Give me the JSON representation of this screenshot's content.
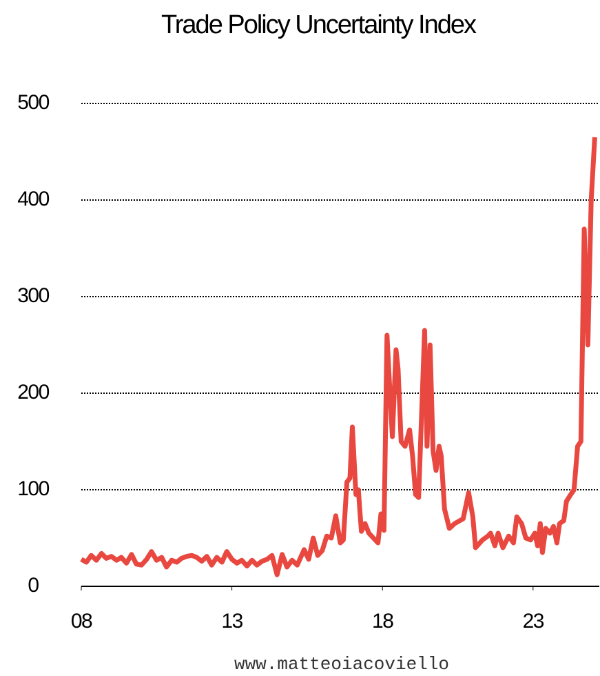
{
  "chart_data": {
    "type": "line",
    "title": "Trade Policy Uncertainty Index",
    "source": "www.matteoiacoviello",
    "color": "#e8483f",
    "x": [
      2008,
      2008.17,
      2008.33,
      2008.5,
      2008.67,
      2008.83,
      2009,
      2009.17,
      2009.33,
      2009.5,
      2009.67,
      2009.83,
      2010,
      2010.17,
      2010.33,
      2010.5,
      2010.67,
      2010.83,
      2011,
      2011.17,
      2011.33,
      2011.5,
      2011.67,
      2011.83,
      2012,
      2012.17,
      2012.33,
      2012.5,
      2012.67,
      2012.83,
      2013,
      2013.17,
      2013.33,
      2013.5,
      2013.67,
      2013.83,
      2014,
      2014.17,
      2014.33,
      2014.5,
      2014.67,
      2014.83,
      2015,
      2015.17,
      2015.4,
      2015.55,
      2015.7,
      2015.85,
      2016,
      2016.15,
      2016.3,
      2016.45,
      2016.6,
      2016.7,
      2016.82,
      2016.92,
      2017,
      2017.12,
      2017.2,
      2017.3,
      2017.42,
      2017.55,
      2017.7,
      2017.85,
      2017.95,
      2018.05,
      2018.15,
      2018.25,
      2018.33,
      2018.45,
      2018.52,
      2018.62,
      2018.75,
      2018.9,
      2019,
      2019.1,
      2019.2,
      2019.4,
      2019.48,
      2019.58,
      2019.68,
      2019.78,
      2019.88,
      2019.95,
      2020.06,
      2020.22,
      2020.4,
      2020.68,
      2020.86,
      2021,
      2021.09,
      2021.32,
      2021.5,
      2021.59,
      2021.73,
      2021.84,
      2022,
      2022.19,
      2022.35,
      2022.46,
      2022.62,
      2022.76,
      2022.92,
      2023.06,
      2023.15,
      2023.24,
      2023.31,
      2023.42,
      2023.56,
      2023.68,
      2023.79,
      2023.88,
      2024.02,
      2024.11,
      2024.25,
      2024.36,
      2024.48,
      2024.59,
      2024.7,
      2024.82,
      2024.93,
      2025.05
    ],
    "values": [
      28,
      25,
      32,
      27,
      34,
      29,
      31,
      27,
      30,
      24,
      33,
      23,
      22,
      28,
      36,
      27,
      30,
      20,
      27,
      25,
      29,
      31,
      32,
      30,
      26,
      31,
      22,
      30,
      25,
      36,
      28,
      24,
      27,
      21,
      27,
      22,
      26,
      28,
      32,
      12,
      33,
      20,
      27,
      22,
      38,
      28,
      50,
      32,
      37,
      52,
      50,
      73,
      45,
      48,
      108,
      112,
      165,
      95,
      100,
      57,
      65,
      55,
      50,
      45,
      75,
      58,
      260,
      200,
      155,
      245,
      225,
      150,
      145,
      162,
      135,
      95,
      92,
      265,
      145,
      250,
      140,
      120,
      145,
      135,
      80,
      60,
      65,
      70,
      97,
      72,
      40,
      48,
      52,
      55,
      42,
      55,
      40,
      52,
      45,
      72,
      65,
      50,
      48,
      55,
      42,
      65,
      35,
      60,
      55,
      62,
      45,
      65,
      68,
      88,
      95,
      100,
      145,
      150,
      370,
      250,
      400,
      465
    ],
    "xlim": [
      2008,
      2025.2
    ],
    "xticks": [
      {
        "value": 2008,
        "label": "08"
      },
      {
        "value": 2013,
        "label": "13"
      },
      {
        "value": 2018,
        "label": "18"
      },
      {
        "value": 2023,
        "label": "23"
      }
    ],
    "ylim": [
      0,
      500
    ],
    "yticks": [
      0,
      100,
      200,
      300,
      400,
      500
    ],
    "grid": true
  }
}
